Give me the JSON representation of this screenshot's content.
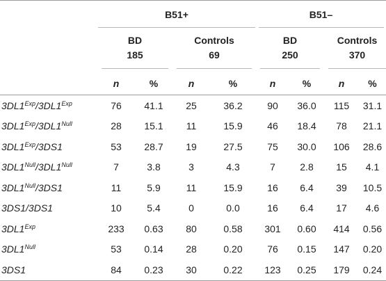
{
  "header": {
    "groups": [
      "B51+",
      "B51–"
    ],
    "subgroups": [
      {
        "label": "BD",
        "count": "185"
      },
      {
        "label": "Controls",
        "count": "69"
      },
      {
        "label": "BD",
        "count": "250"
      },
      {
        "label": "Controls",
        "count": "370"
      }
    ],
    "n_label": "n",
    "pct_label": "%"
  },
  "rows": [
    {
      "a": "3DL1",
      "a_sup": "Exp",
      "sep": "/",
      "b": "3DL1",
      "b_sup": "Exp",
      "values": [
        "76",
        "41.1",
        "25",
        "36.2",
        "90",
        "36.0",
        "115",
        "31.1"
      ]
    },
    {
      "a": "3DL1",
      "a_sup": "Exp",
      "sep": "/",
      "b": "3DL1",
      "b_sup": "Null",
      "values": [
        "28",
        "15.1",
        "11",
        "15.9",
        "46",
        "18.4",
        "78",
        "21.1"
      ]
    },
    {
      "a": "3DL1",
      "a_sup": "Exp",
      "sep": "/",
      "b": "3DS1",
      "b_sup": "",
      "values": [
        "53",
        "28.7",
        "19",
        "27.5",
        "75",
        "30.0",
        "106",
        "28.6"
      ]
    },
    {
      "a": "3DL1",
      "a_sup": "Null",
      "sep": "/",
      "b": "3DL1",
      "b_sup": "Null",
      "values": [
        "7",
        "3.8",
        "3",
        "4.3",
        "7",
        "2.8",
        "15",
        "4.1"
      ]
    },
    {
      "a": "3DL1",
      "a_sup": "Null",
      "sep": "/",
      "b": "3DS1",
      "b_sup": "",
      "values": [
        "11",
        "5.9",
        "11",
        "15.9",
        "16",
        "6.4",
        "39",
        "10.5"
      ]
    },
    {
      "a": "3DS1",
      "a_sup": "",
      "sep": "/",
      "b": "3DS1",
      "b_sup": "",
      "values": [
        "10",
        "5.4",
        "0",
        "0.0",
        "16",
        "6.4",
        "17",
        "4.6"
      ]
    },
    {
      "a": "3DL1",
      "a_sup": "Exp",
      "sep": "",
      "b": "",
      "b_sup": "",
      "values": [
        "233",
        "0.63",
        "80",
        "0.58",
        "301",
        "0.60",
        "414",
        "0.56"
      ]
    },
    {
      "a": "3DL1",
      "a_sup": "Null",
      "sep": "",
      "b": "",
      "b_sup": "",
      "values": [
        "53",
        "0.14",
        "28",
        "0.20",
        "76",
        "0.15",
        "147",
        "0.20"
      ]
    },
    {
      "a": "3DS1",
      "a_sup": "",
      "sep": "",
      "b": "",
      "b_sup": "",
      "values": [
        "84",
        "0.23",
        "30",
        "0.22",
        "123",
        "0.25",
        "179",
        "0.24"
      ]
    }
  ]
}
